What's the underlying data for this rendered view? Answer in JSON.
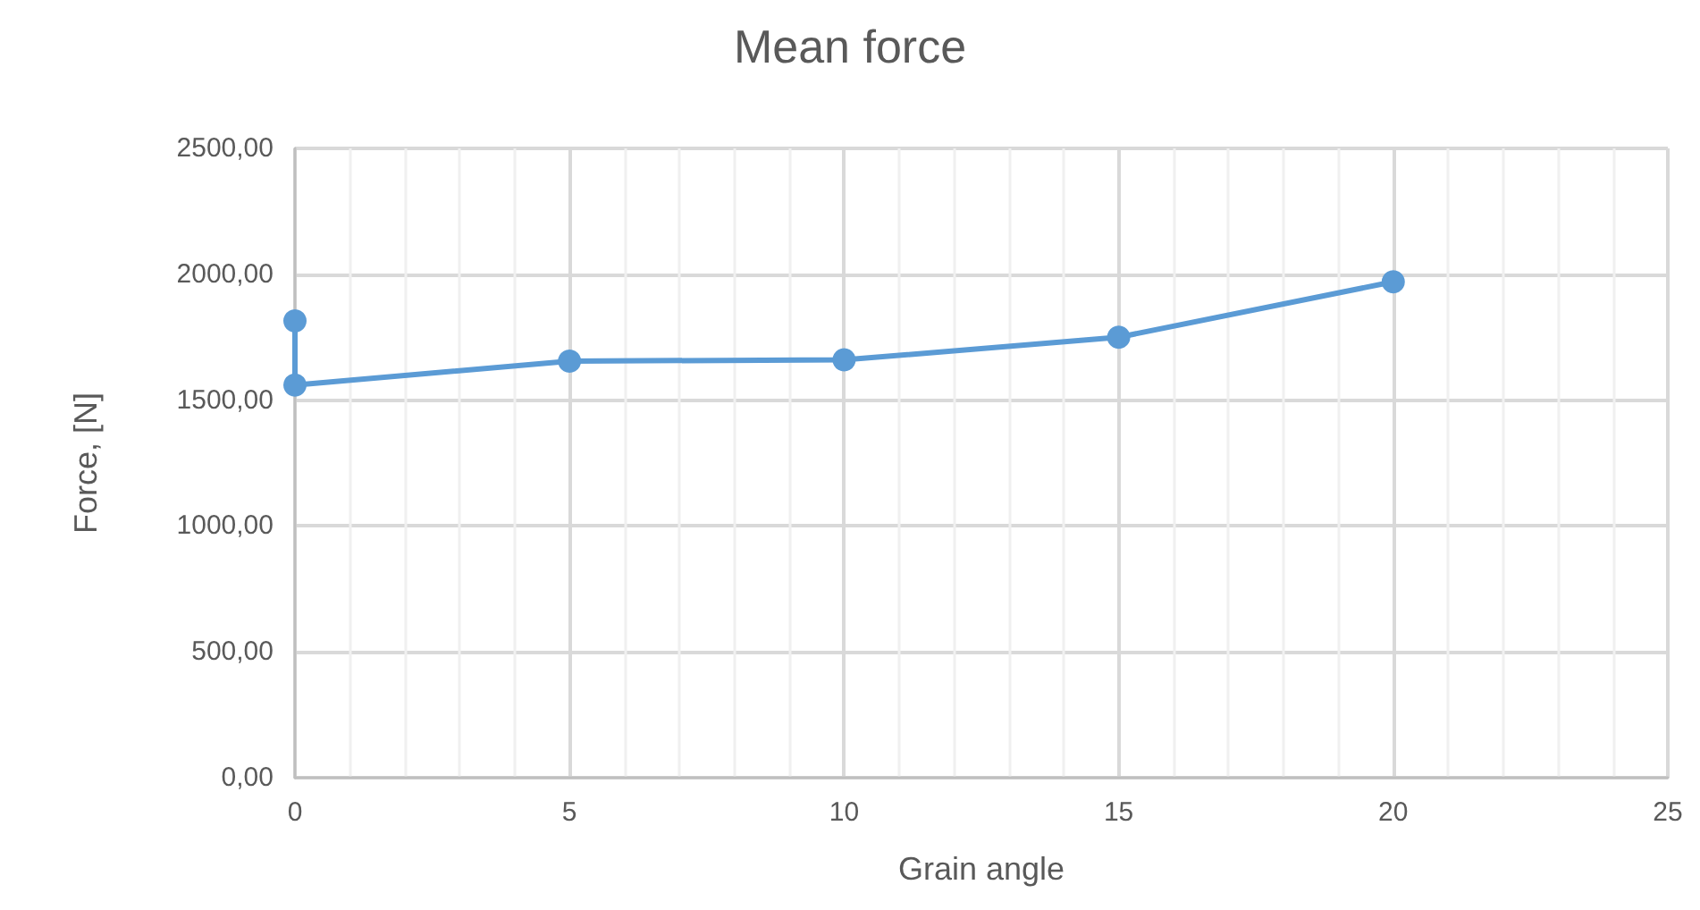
{
  "chart_data": {
    "type": "line",
    "title": "Mean force",
    "xlabel": "Grain angle",
    "ylabel": "Force, [N]",
    "x": [
      0,
      0,
      5,
      10,
      15,
      20
    ],
    "series": [
      {
        "color": "#5b9bd5",
        "values": [
          1815,
          1560,
          1655,
          1660,
          1750,
          1970
        ]
      }
    ],
    "xlim": [
      0,
      25
    ],
    "xticks": [
      0,
      5,
      10,
      15,
      20,
      25
    ],
    "ylim": [
      0,
      2500
    ],
    "yticks": [
      {
        "value": 0,
        "label": "0,00"
      },
      {
        "value": 500,
        "label": "500,00"
      },
      {
        "value": 1000,
        "label": "1000,00"
      },
      {
        "value": 1500,
        "label": "1500,00"
      },
      {
        "value": 2000,
        "label": "2000,00"
      },
      {
        "value": 2500,
        "label": "2500,00"
      }
    ],
    "grid": true,
    "marker": "circle",
    "line_style": "solid"
  }
}
